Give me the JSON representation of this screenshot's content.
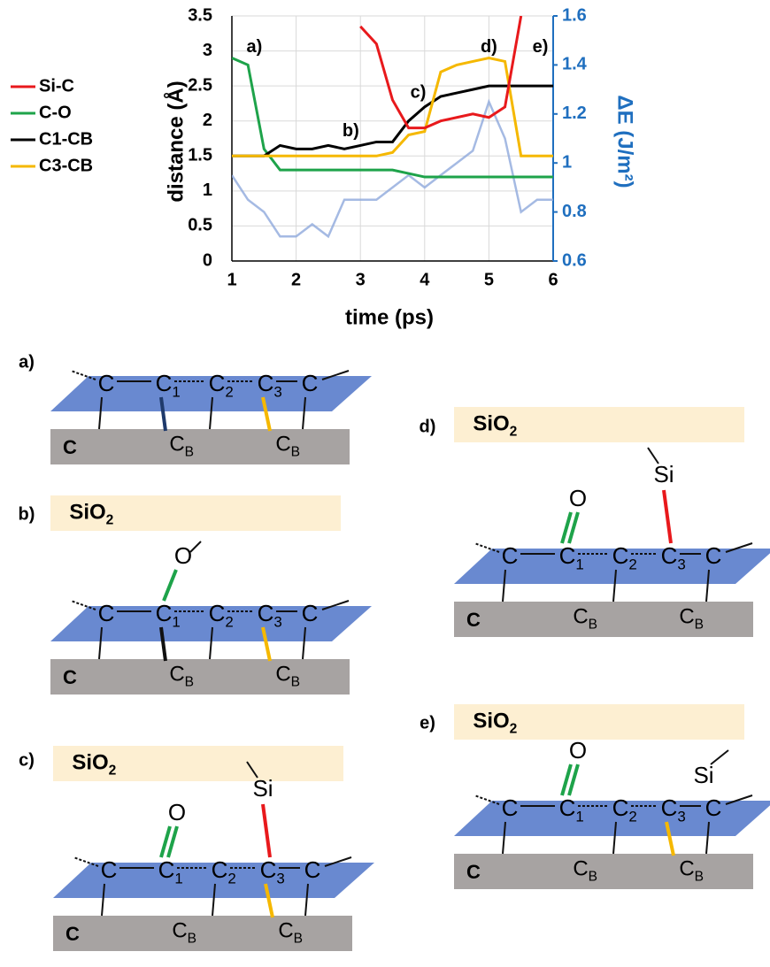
{
  "chart_data": {
    "type": "line",
    "xlabel": "time (ps)",
    "ylabel": "distance (Å)",
    "y2label": "ΔE (J/m²)",
    "x": [
      1,
      1.25,
      1.5,
      1.75,
      2,
      2.25,
      2.5,
      2.75,
      3,
      3.25,
      3.5,
      3.75,
      4,
      4.25,
      4.5,
      4.75,
      5,
      5.25,
      5.5,
      5.75,
      6
    ],
    "series": [
      {
        "name": "Si-C",
        "color": "#e8191c",
        "values": [
          null,
          null,
          null,
          null,
          null,
          null,
          null,
          null,
          3.35,
          3.1,
          2.3,
          1.9,
          1.9,
          2.0,
          2.05,
          2.1,
          2.05,
          2.2,
          3.5,
          null,
          null
        ]
      },
      {
        "name": "C-O",
        "color": "#1ea34a",
        "values": [
          2.9,
          2.8,
          1.6,
          1.3,
          1.3,
          1.3,
          1.3,
          1.3,
          1.3,
          1.3,
          1.3,
          1.25,
          1.2,
          1.2,
          1.2,
          1.2,
          1.2,
          1.2,
          1.2,
          1.2,
          1.2
        ]
      },
      {
        "name": "C1-CB",
        "color": "#000000",
        "values": [
          1.5,
          1.5,
          1.5,
          1.65,
          1.6,
          1.6,
          1.65,
          1.6,
          1.65,
          1.7,
          1.7,
          2.0,
          2.2,
          2.35,
          2.4,
          2.45,
          2.5,
          2.5,
          2.5,
          2.5,
          2.5
        ]
      },
      {
        "name": "C3-CB",
        "color": "#f5b800",
        "values": [
          1.5,
          1.5,
          1.5,
          1.5,
          1.5,
          1.5,
          1.5,
          1.5,
          1.5,
          1.5,
          1.55,
          1.8,
          1.85,
          2.7,
          2.8,
          2.85,
          2.9,
          2.85,
          1.5,
          1.5,
          1.5
        ]
      },
      {
        "color": "#8fa9dc",
        "axis": "y2",
        "values": [
          0.95,
          0.85,
          0.8,
          0.7,
          0.7,
          0.75,
          0.7,
          0.85,
          0.85,
          0.85,
          0.9,
          0.95,
          0.9,
          0.95,
          1.0,
          1.05,
          1.25,
          1.1,
          0.8,
          0.85,
          0.85
        ]
      }
    ],
    "xlim": [
      1,
      6
    ],
    "xticks": [
      1,
      2,
      3,
      4,
      5,
      6
    ],
    "ylim": [
      0,
      3.5
    ],
    "yticks": [
      0,
      0.5,
      1,
      1.5,
      2,
      2.5,
      3,
      3.5
    ],
    "y2lim": [
      0.6,
      1.6
    ],
    "y2ticks": [
      0.6,
      0.8,
      1,
      1.2,
      1.4,
      1.6
    ],
    "y2color": "#1f6fbf",
    "grid": true,
    "annotations": [
      {
        "text": "a)",
        "x": 1.35,
        "y": 3.05
      },
      {
        "text": "b)",
        "x": 2.85,
        "y": 1.85
      },
      {
        "text": "c)",
        "x": 3.9,
        "y": 2.4
      },
      {
        "text": "d)",
        "x": 5.0,
        "y": 3.05
      },
      {
        "text": "e)",
        "x": 5.8,
        "y": 3.05
      }
    ]
  },
  "diagrams": [
    {
      "label": "a)",
      "base": "C",
      "atoms": [
        {
          "symbol": "C"
        },
        {
          "symbol": "C",
          "sub": "1"
        },
        {
          "symbol": "C",
          "sub": "2"
        },
        {
          "symbol": "C",
          "sub": "3"
        },
        {
          "symbol": "C"
        }
      ],
      "below": [
        {
          "symbol": "C",
          "sub": "B"
        },
        {
          "symbol": "C",
          "sub": "B"
        }
      ]
    },
    {
      "label": "b)",
      "top": {
        "symbol": "SiO",
        "sub": "2"
      },
      "base": "C",
      "atoms": [
        {
          "symbol": "C"
        },
        {
          "symbol": "C",
          "sub": "1"
        },
        {
          "symbol": "C",
          "sub": "2"
        },
        {
          "symbol": "C",
          "sub": "3"
        },
        {
          "symbol": "C"
        }
      ],
      "below": [
        {
          "symbol": "C",
          "sub": "B"
        },
        {
          "symbol": "C",
          "sub": "B"
        }
      ],
      "oxygen": {
        "symbol": "O"
      }
    },
    {
      "label": "c)",
      "top": {
        "symbol": "SiO",
        "sub": "2"
      },
      "base": "C",
      "atoms": [
        {
          "symbol": "C"
        },
        {
          "symbol": "C",
          "sub": "1"
        },
        {
          "symbol": "C",
          "sub": "2"
        },
        {
          "symbol": "C",
          "sub": "3"
        },
        {
          "symbol": "C"
        }
      ],
      "below": [
        {
          "symbol": "C",
          "sub": "B"
        },
        {
          "symbol": "C",
          "sub": "B"
        }
      ],
      "oxygen": {
        "symbol": "O"
      },
      "silicon": {
        "symbol": "Si"
      }
    },
    {
      "label": "d)",
      "top": {
        "symbol": "SiO",
        "sub": "2"
      },
      "base": "C",
      "atoms": [
        {
          "symbol": "C"
        },
        {
          "symbol": "C",
          "sub": "1"
        },
        {
          "symbol": "C",
          "sub": "2"
        },
        {
          "symbol": "C",
          "sub": "3"
        },
        {
          "symbol": "C"
        }
      ],
      "below": [
        {
          "symbol": "C",
          "sub": "B"
        },
        {
          "symbol": "C",
          "sub": "B"
        }
      ],
      "oxygen": {
        "symbol": "O"
      },
      "silicon": {
        "symbol": "Si"
      }
    },
    {
      "label": "e)",
      "top": {
        "symbol": "SiO",
        "sub": "2"
      },
      "base": "C",
      "atoms": [
        {
          "symbol": "C"
        },
        {
          "symbol": "C",
          "sub": "1"
        },
        {
          "symbol": "C",
          "sub": "2"
        },
        {
          "symbol": "C",
          "sub": "3"
        },
        {
          "symbol": "C"
        }
      ],
      "below": [
        {
          "symbol": "C",
          "sub": "B"
        },
        {
          "symbol": "C",
          "sub": "B"
        }
      ],
      "oxygen": {
        "symbol": "O"
      },
      "silicon": {
        "symbol": "Si"
      }
    }
  ]
}
